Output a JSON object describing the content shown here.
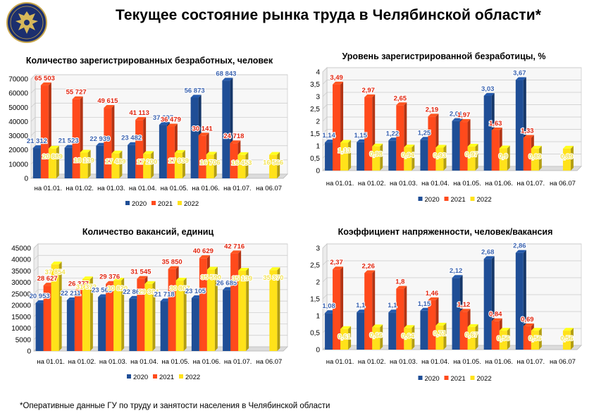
{
  "page_title": "Текущее состояние рынка труда в Челябинской области*",
  "footnote": "*Оперативные данные ГУ по труду и занятости населения в Челябинской области",
  "colors": {
    "2020": "#1f4e96",
    "2021": "#ff4a1c",
    "2022": "#ffe21a",
    "label_2020": "#3c64b0",
    "label_2021": "#e0240e",
    "label_2022": "#f2e35a"
  },
  "chart_data": [
    {
      "type": "bar",
      "title": "Количество зарегистрированных безработных, человек",
      "categories": [
        "на 01.01.",
        "на 01.02.",
        "на 01.03.",
        "на 01.04.",
        "на 01.05.",
        "на 01.06.",
        "на 01.07.",
        "на 06.07"
      ],
      "ylim": [
        0,
        70000
      ],
      "yticks": [
        "0",
        "10000",
        "20000",
        "30000",
        "40000",
        "50000",
        "60000",
        "70000"
      ],
      "series": [
        {
          "name": "2020",
          "values": [
            21312,
            21523,
            22939,
            23482,
            37697,
            56873,
            68843,
            null
          ],
          "labels": [
            "21 312",
            "21 523",
            "22 939",
            "23 482",
            "37 697",
            "56 873",
            "68 843",
            ""
          ]
        },
        {
          "name": "2021",
          "values": [
            65503,
            55727,
            49615,
            41113,
            36479,
            30141,
            24718,
            null
          ],
          "labels": [
            "65 503",
            "55 727",
            "49 615",
            "41 113",
            "36 479",
            "30 141",
            "24 718",
            ""
          ]
        },
        {
          "name": "2022",
          "values": [
            20889,
            18139,
            17489,
            17200,
            17939,
            16706,
            16453,
            16566
          ],
          "labels": [
            "20 889",
            "18 139",
            "17 489",
            "17 200",
            "17 939",
            "16 706",
            "16 453",
            "16 566"
          ]
        }
      ]
    },
    {
      "type": "bar",
      "title": "Уровень зарегистрированной безработицы, %",
      "categories": [
        "на 01.01.",
        "на 01.02.",
        "на 01.03.",
        "на 01.04.",
        "на 01.05.",
        "на 01.06.",
        "на 01.07.",
        "на 06.07"
      ],
      "ylim": [
        0,
        4
      ],
      "yticks": [
        "0",
        "0,5",
        "1",
        "1,5",
        "2",
        "2,5",
        "3",
        "3,5",
        "4"
      ],
      "series": [
        {
          "name": "2020",
          "values": [
            1.14,
            1.15,
            1.22,
            1.25,
            2.01,
            3.03,
            3.67,
            null
          ],
          "labels": [
            "1,14",
            "1,15",
            "1,22",
            "1,25",
            "2,01",
            "3,03",
            "3,67",
            ""
          ]
        },
        {
          "name": "2021",
          "values": [
            3.49,
            2.97,
            2.65,
            2.19,
            1.97,
            1.63,
            1.33,
            null
          ],
          "labels": [
            "3,49",
            "2,97",
            "2,65",
            "2,19",
            "1,97",
            "1,63",
            "1,33",
            ""
          ]
        },
        {
          "name": "2022",
          "values": [
            1.13,
            0.98,
            0.94,
            0.93,
            0.97,
            0.9,
            0.89,
            0.89
          ],
          "labels": [
            "1,13",
            "0,98",
            "0,94",
            "0,93",
            "0,97",
            "0,9",
            "0,89",
            "0,89"
          ]
        }
      ]
    },
    {
      "type": "bar",
      "title": "Количество вакансий, единиц",
      "categories": [
        "на 01.01.",
        "на 01.02.",
        "на 01.03.",
        "на 01.04.",
        "на 01.05.",
        "на 01.06.",
        "на 01.07.",
        "на 06.07"
      ],
      "ylim": [
        0,
        45000
      ],
      "yticks": [
        "0",
        "5000",
        "10000",
        "15000",
        "20000",
        "25000",
        "30000",
        "35000",
        "40000",
        "45000"
      ],
      "series": [
        {
          "name": "2020",
          "values": [
            20953,
            22211,
            23569,
            22866,
            21718,
            23105,
            26685,
            null
          ],
          "labels": [
            "20 953",
            "22 211",
            "23 569",
            "22 866",
            "21 718",
            "23 105",
            "26 685",
            ""
          ]
        },
        {
          "name": "2021",
          "values": [
            28627,
            26377,
            29376,
            31545,
            35850,
            40629,
            42716,
            null
          ],
          "labels": [
            "28 627",
            "26 377",
            "29 376",
            "31 545",
            "35 850",
            "40 629",
            "42 716",
            ""
          ]
        },
        {
          "name": "2022",
          "values": [
            37854,
            31372,
            30820,
            29304,
            30807,
            35590,
            35139,
            35370
          ],
          "labels": [
            "37 854",
            "31 372",
            "30 820",
            "29 304",
            "30 807",
            "35 590",
            "35 139",
            "35 370"
          ]
        }
      ]
    },
    {
      "type": "bar",
      "title": "Коэффициент напряженности, человек/вакансия",
      "categories": [
        "на 01.01.",
        "на 01.02.",
        "на 01.03.",
        "на 01.04.",
        "на 01.05.",
        "на 01.06.",
        "на 01.07.",
        "на 06.07"
      ],
      "ylim": [
        0,
        3
      ],
      "yticks": [
        "0",
        "0,5",
        "1",
        "1,5",
        "2",
        "2,5",
        "3"
      ],
      "series": [
        {
          "name": "2020",
          "values": [
            1.08,
            1.1,
            1.1,
            1.15,
            2.12,
            2.68,
            2.86,
            null
          ],
          "labels": [
            "1,08",
            "1,1",
            "1,1",
            "1,15",
            "2,12",
            "2,68",
            "2,86",
            ""
          ]
        },
        {
          "name": "2021",
          "values": [
            2.37,
            2.26,
            1.8,
            1.46,
            1.12,
            0.84,
            0.69,
            null
          ],
          "labels": [
            "2,37",
            "2,26",
            "1,8",
            "1,46",
            "1,12",
            "0,84",
            "0,69",
            ""
          ]
        },
        {
          "name": "2022",
          "values": [
            0.61,
            0.66,
            0.64,
            0.71,
            0.67,
            0.56,
            0.56,
            0.56
          ],
          "labels": [
            "0,61",
            "0,66",
            "0,64",
            "0,71",
            "0,67",
            "0,56",
            "0,56",
            "0,56"
          ]
        }
      ]
    }
  ]
}
